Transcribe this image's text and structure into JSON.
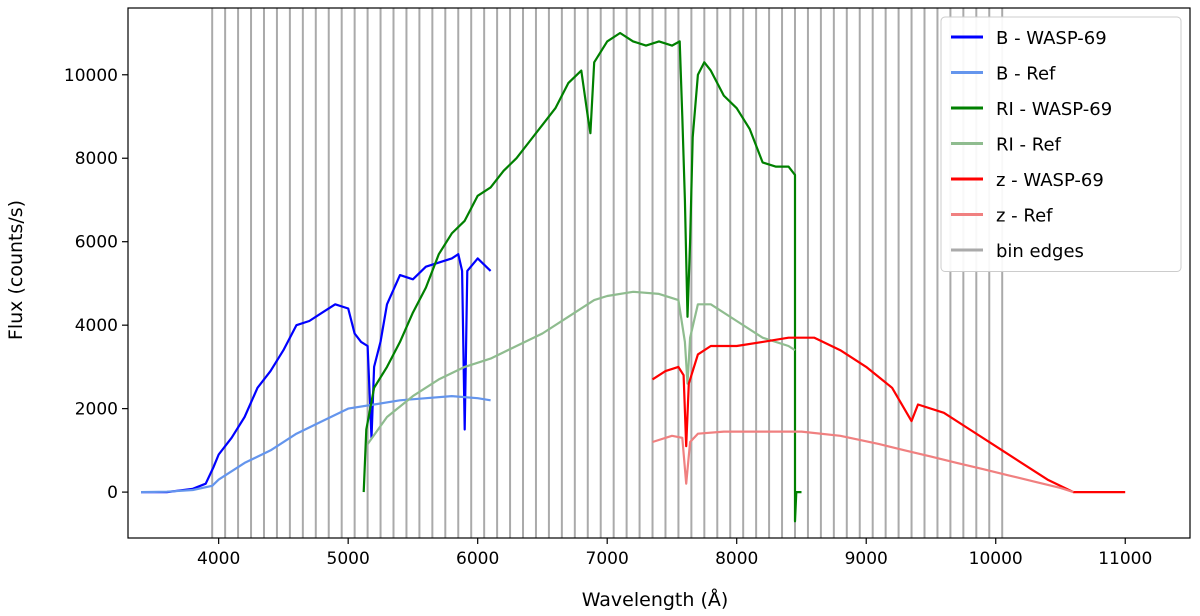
{
  "chart_data": {
    "type": "line",
    "title": "",
    "xlabel": "Wavelength (Å)",
    "ylabel": "Flux (counts/s)",
    "xlim": [
      3300,
      11500
    ],
    "ylim": [
      -1100,
      11600
    ],
    "xticks": [
      4000,
      5000,
      6000,
      7000,
      8000,
      9000,
      10000,
      11000
    ],
    "yticks": [
      0,
      2000,
      4000,
      6000,
      8000,
      10000
    ],
    "grid": false,
    "legend_position": "top-right",
    "bin_edges": {
      "name": "bin edges",
      "color": "#aaaaaa",
      "start": 3950,
      "end": 10050,
      "step": 100
    },
    "series": [
      {
        "name": "B - WASP-69",
        "color": "#0000ff",
        "points": [
          [
            3400,
            0
          ],
          [
            3600,
            0
          ],
          [
            3800,
            80
          ],
          [
            3900,
            200
          ],
          [
            3960,
            600
          ],
          [
            4000,
            900
          ],
          [
            4100,
            1300
          ],
          [
            4200,
            1800
          ],
          [
            4300,
            2500
          ],
          [
            4400,
            2900
          ],
          [
            4500,
            3400
          ],
          [
            4600,
            4000
          ],
          [
            4700,
            4100
          ],
          [
            4800,
            4300
          ],
          [
            4900,
            4500
          ],
          [
            5000,
            4400
          ],
          [
            5050,
            3800
          ],
          [
            5100,
            3600
          ],
          [
            5150,
            3500
          ],
          [
            5180,
            1300
          ],
          [
            5200,
            3000
          ],
          [
            5250,
            3600
          ],
          [
            5300,
            4500
          ],
          [
            5400,
            5200
          ],
          [
            5500,
            5100
          ],
          [
            5600,
            5400
          ],
          [
            5700,
            5500
          ],
          [
            5800,
            5600
          ],
          [
            5850,
            5700
          ],
          [
            5880,
            5300
          ],
          [
            5900,
            1500
          ],
          [
            5920,
            5300
          ],
          [
            6000,
            5600
          ],
          [
            6100,
            5300
          ]
        ]
      },
      {
        "name": "B - Ref",
        "color": "#6495ed",
        "points": [
          [
            3400,
            0
          ],
          [
            3600,
            10
          ],
          [
            3800,
            50
          ],
          [
            3950,
            150
          ],
          [
            4000,
            300
          ],
          [
            4200,
            700
          ],
          [
            4400,
            1000
          ],
          [
            4600,
            1400
          ],
          [
            4800,
            1700
          ],
          [
            5000,
            2000
          ],
          [
            5200,
            2100
          ],
          [
            5400,
            2200
          ],
          [
            5600,
            2250
          ],
          [
            5800,
            2300
          ],
          [
            6000,
            2250
          ],
          [
            6100,
            2200
          ]
        ]
      },
      {
        "name": "RI - WASP-69",
        "color": "#008000",
        "points": [
          [
            5120,
            0
          ],
          [
            5140,
            1500
          ],
          [
            5200,
            2500
          ],
          [
            5300,
            3000
          ],
          [
            5400,
            3600
          ],
          [
            5500,
            4300
          ],
          [
            5600,
            4900
          ],
          [
            5700,
            5700
          ],
          [
            5800,
            6200
          ],
          [
            5900,
            6500
          ],
          [
            6000,
            7100
          ],
          [
            6100,
            7300
          ],
          [
            6200,
            7700
          ],
          [
            6300,
            8000
          ],
          [
            6400,
            8400
          ],
          [
            6500,
            8800
          ],
          [
            6600,
            9200
          ],
          [
            6700,
            9800
          ],
          [
            6800,
            10100
          ],
          [
            6850,
            9000
          ],
          [
            6870,
            8600
          ],
          [
            6900,
            10300
          ],
          [
            7000,
            10800
          ],
          [
            7100,
            11000
          ],
          [
            7200,
            10800
          ],
          [
            7300,
            10700
          ],
          [
            7400,
            10800
          ],
          [
            7500,
            10700
          ],
          [
            7560,
            10800
          ],
          [
            7580,
            9000
          ],
          [
            7600,
            7000
          ],
          [
            7620,
            4200
          ],
          [
            7640,
            6000
          ],
          [
            7660,
            8500
          ],
          [
            7700,
            10000
          ],
          [
            7750,
            10300
          ],
          [
            7800,
            10100
          ],
          [
            7900,
            9500
          ],
          [
            8000,
            9200
          ],
          [
            8100,
            8700
          ],
          [
            8200,
            7900
          ],
          [
            8300,
            7800
          ],
          [
            8400,
            7800
          ],
          [
            8450,
            7600
          ],
          [
            8450,
            -700
          ],
          [
            8460,
            0
          ],
          [
            8500,
            0
          ]
        ]
      },
      {
        "name": "RI - Ref",
        "color": "#8fbc8f",
        "points": [
          [
            5150,
            1150
          ],
          [
            5300,
            1800
          ],
          [
            5500,
            2300
          ],
          [
            5700,
            2700
          ],
          [
            5900,
            3000
          ],
          [
            6100,
            3200
          ],
          [
            6300,
            3500
          ],
          [
            6500,
            3800
          ],
          [
            6700,
            4200
          ],
          [
            6900,
            4600
          ],
          [
            7000,
            4700
          ],
          [
            7200,
            4800
          ],
          [
            7400,
            4750
          ],
          [
            7550,
            4600
          ],
          [
            7600,
            3600
          ],
          [
            7620,
            2600
          ],
          [
            7640,
            3700
          ],
          [
            7700,
            4500
          ],
          [
            7800,
            4500
          ],
          [
            8000,
            4100
          ],
          [
            8200,
            3700
          ],
          [
            8400,
            3500
          ],
          [
            8450,
            3400
          ]
        ]
      },
      {
        "name": "z - WASP-69",
        "color": "#ff0000",
        "points": [
          [
            7350,
            2700
          ],
          [
            7450,
            2900
          ],
          [
            7550,
            3000
          ],
          [
            7590,
            2800
          ],
          [
            7610,
            1100
          ],
          [
            7630,
            2600
          ],
          [
            7700,
            3300
          ],
          [
            7800,
            3500
          ],
          [
            8000,
            3500
          ],
          [
            8200,
            3600
          ],
          [
            8400,
            3700
          ],
          [
            8600,
            3700
          ],
          [
            8800,
            3400
          ],
          [
            9000,
            3000
          ],
          [
            9200,
            2500
          ],
          [
            9350,
            1700
          ],
          [
            9400,
            2100
          ],
          [
            9600,
            1900
          ],
          [
            9800,
            1500
          ],
          [
            10000,
            1100
          ],
          [
            10200,
            700
          ],
          [
            10400,
            300
          ],
          [
            10600,
            0
          ],
          [
            11000,
            0
          ]
        ]
      },
      {
        "name": "z - Ref",
        "color": "#f08080",
        "points": [
          [
            7350,
            1200
          ],
          [
            7500,
            1350
          ],
          [
            7580,
            1300
          ],
          [
            7610,
            200
          ],
          [
            7640,
            1200
          ],
          [
            7700,
            1400
          ],
          [
            7900,
            1450
          ],
          [
            8200,
            1450
          ],
          [
            8500,
            1450
          ],
          [
            8800,
            1350
          ],
          [
            9100,
            1150
          ],
          [
            9300,
            1000
          ],
          [
            9500,
            850
          ],
          [
            9700,
            700
          ],
          [
            9900,
            550
          ],
          [
            10100,
            400
          ],
          [
            10300,
            250
          ],
          [
            10500,
            100
          ],
          [
            10600,
            0
          ]
        ]
      }
    ]
  }
}
